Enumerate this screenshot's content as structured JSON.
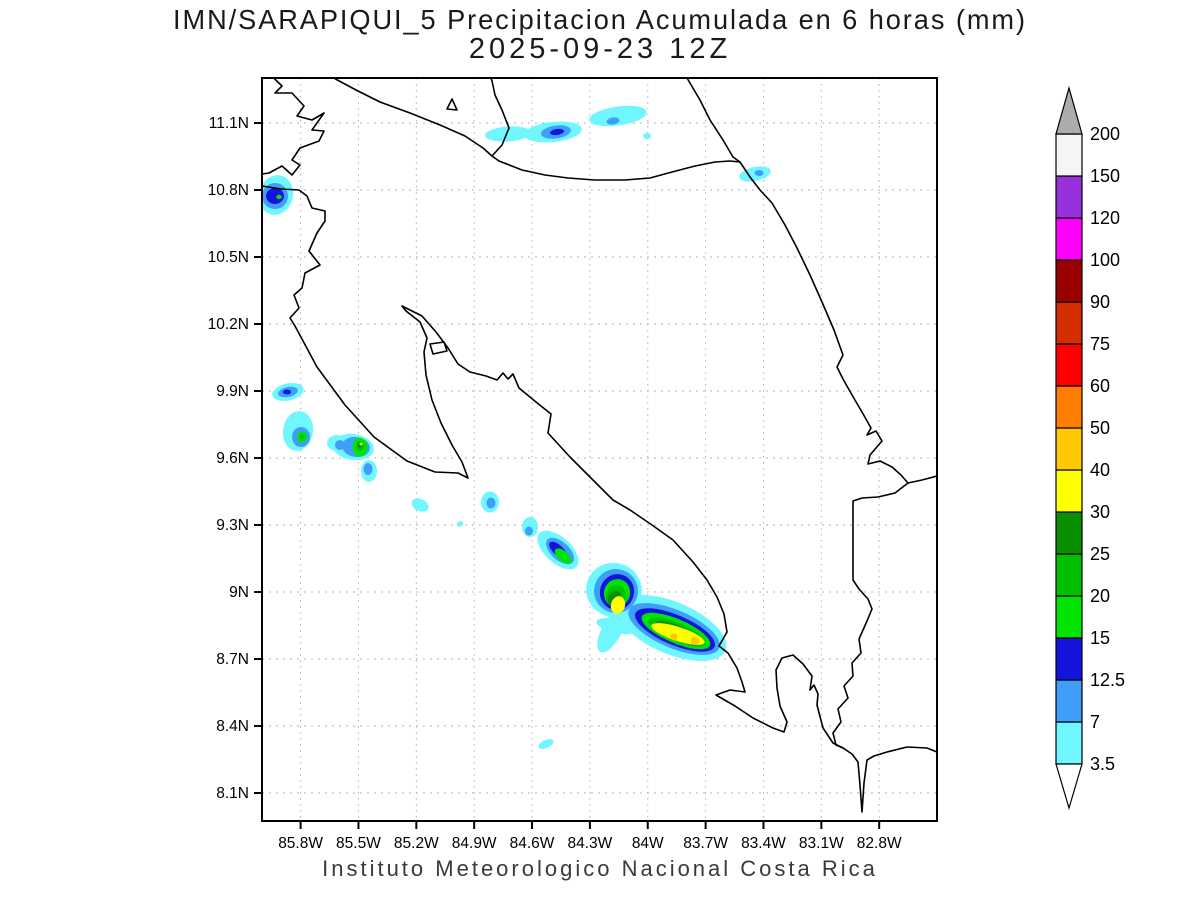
{
  "title": {
    "line1": "IMN/SARAPIQUI_5 Precipitacion Acumulada en 6 horas (mm)",
    "line2": "2025-09-23 12Z"
  },
  "footer": "Instituto Meteorologico Nacional Costa Rica",
  "map": {
    "lat_ticks": [
      "11.1N",
      "10.8N",
      "10.5N",
      "10.2N",
      "9.9N",
      "9.6N",
      "9.3N",
      "9N",
      "8.7N",
      "8.4N",
      "8.1N"
    ],
    "lon_ticks": [
      "85.8W",
      "85.5W",
      "85.2W",
      "84.9W",
      "84.6W",
      "84.3W",
      "84W",
      "83.7W",
      "83.4W",
      "83.1W",
      "82.8W"
    ],
    "grid_color": "#b0b0b0",
    "coast_color": "#000000"
  },
  "colorbar": {
    "levels": [
      "3.5",
      "7",
      "12.5",
      "15",
      "20",
      "25",
      "30",
      "40",
      "50",
      "60",
      "75",
      "90",
      "100",
      "120",
      "150",
      "200"
    ],
    "colors": [
      "#70F6FF",
      "#3F9FF8",
      "#1414DC",
      "#00E400",
      "#00C000",
      "#089000",
      "#FFFF00",
      "#FFC800",
      "#FF7D00",
      "#FF0000",
      "#D32D00",
      "#9A0000",
      "#FF00FF",
      "#9632DC",
      "#F5F5F5"
    ],
    "above_color": "#ACACAC",
    "below_color": "#FFFFFF"
  },
  "palette": {
    "3.5": "#70F6FF",
    "7": "#3F9FF8",
    "12.5": "#1414DC",
    "15": "#00E400",
    "20": "#00C000",
    "25": "#089000",
    "30": "#FFFF00",
    "40": "#FFC800"
  },
  "cells": [
    {
      "name": "guanacaste-north-offshore",
      "layers": [
        [
          "3.5",
          276,
          195,
          17,
          20,
          15
        ],
        [
          "7",
          275,
          196,
          13,
          13,
          0
        ],
        [
          "12.5",
          275,
          196,
          9,
          8,
          0
        ],
        [
          "15",
          279,
          197,
          2.8,
          2.2,
          0
        ]
      ]
    },
    {
      "name": "border-west-cell",
      "layers": [
        [
          "3.5",
          508,
          134,
          23,
          7.5,
          -4
        ],
        [
          "3.5",
          553,
          132,
          29,
          10,
          -6
        ],
        [
          "7",
          556,
          132,
          15,
          6.5,
          -8
        ],
        [
          "12.5",
          557,
          132,
          7,
          3,
          -8
        ]
      ]
    },
    {
      "name": "border-east-cell",
      "layers": [
        [
          "3.5",
          618,
          116,
          29,
          9.5,
          -8
        ],
        [
          "3.5",
          647,
          136,
          4,
          3,
          0
        ],
        [
          "7",
          613,
          121,
          6.5,
          3.5,
          -10
        ]
      ]
    },
    {
      "name": "caribbean-coast-speck",
      "layers": [
        [
          "3.5",
          755,
          174,
          16,
          7,
          -12
        ],
        [
          "7",
          759,
          173,
          4.5,
          3,
          0
        ]
      ]
    },
    {
      "name": "nicoya-nw-cell",
      "layers": [
        [
          "3.5",
          288,
          392,
          16,
          8.5,
          -12
        ],
        [
          "7",
          288,
          392,
          10,
          5,
          -12
        ],
        [
          "12.5",
          287,
          392,
          4,
          2.5,
          0
        ]
      ]
    },
    {
      "name": "nicoya-west-cell",
      "layers": [
        [
          "3.5",
          298,
          431,
          15,
          20,
          8
        ],
        [
          "7",
          301,
          437,
          9,
          10,
          0
        ],
        [
          "15",
          302,
          437,
          5,
          5.5,
          0
        ],
        [
          "20",
          302,
          437,
          2.5,
          2.5,
          0
        ]
      ]
    },
    {
      "name": "nicoya-south-cell",
      "layers": [
        [
          "3.5",
          337,
          443,
          10,
          8,
          0
        ],
        [
          "3.5",
          353,
          447,
          21,
          13,
          8
        ],
        [
          "7",
          340,
          445,
          5,
          5,
          0
        ],
        [
          "7",
          356,
          447,
          14,
          10,
          8
        ],
        [
          "15",
          360,
          447,
          7.5,
          9,
          0
        ],
        [
          "20",
          360,
          446,
          4,
          5,
          0
        ],
        [
          "25",
          360,
          445,
          2.2,
          2.5,
          0
        ],
        [
          "30",
          361,
          444,
          1.5,
          1.5,
          0
        ]
      ]
    },
    {
      "name": "nicoya-tip-cell",
      "layers": [
        [
          "3.5",
          369,
          471,
          8,
          11,
          0
        ],
        [
          "7",
          368,
          469,
          4.5,
          6,
          0
        ]
      ]
    },
    {
      "name": "gulf-mouth-speck",
      "layers": [
        [
          "3.5",
          420,
          505,
          9,
          6,
          25
        ]
      ]
    },
    {
      "name": "tiny-offshore-speck",
      "layers": [
        [
          "3.5",
          460,
          524,
          3.5,
          2.5,
          -20
        ]
      ]
    },
    {
      "name": "herradura-speck",
      "layers": [
        [
          "3.5",
          490,
          502,
          9,
          10.5,
          0
        ],
        [
          "7",
          491,
          503,
          4.5,
          5.5,
          0
        ]
      ]
    },
    {
      "name": "quepos-speck",
      "layers": [
        [
          "3.5",
          530,
          527,
          8,
          10,
          0
        ],
        [
          "7",
          529,
          531,
          4,
          4.5,
          0
        ]
      ]
    },
    {
      "name": "savegre-band",
      "layers": [
        [
          "3.5",
          558,
          550,
          25,
          13,
          42
        ],
        [
          "7",
          560,
          551,
          17,
          9,
          42
        ],
        [
          "12.5",
          558,
          550,
          11,
          5,
          42
        ],
        [
          "15",
          563,
          556,
          10,
          5,
          42
        ]
      ]
    },
    {
      "name": "south-pacific-system",
      "layers": [
        [
          "3.5",
          614,
          590,
          28,
          27,
          20
        ],
        [
          "3.5",
          672,
          628,
          58,
          26,
          23
        ],
        [
          "3.5",
          612,
          630,
          10,
          25,
          28
        ],
        [
          "3.5",
          617,
          626,
          21,
          7,
          12
        ],
        [
          "7",
          616,
          591,
          22,
          22,
          20
        ],
        [
          "7",
          674,
          629,
          49,
          19,
          23
        ],
        [
          "12.5",
          617,
          592,
          17,
          18,
          20
        ],
        [
          "12.5",
          675,
          630,
          43,
          15,
          23
        ],
        [
          "15",
          617,
          593,
          13,
          14,
          20
        ],
        [
          "15",
          676,
          631,
          37,
          12,
          23
        ],
        [
          "20",
          616,
          596,
          10,
          11,
          20
        ],
        [
          "20",
          677,
          632,
          31,
          9,
          23
        ],
        [
          "25",
          615,
          599,
          7,
          8,
          20
        ],
        [
          "25",
          678,
          633,
          25,
          7,
          23
        ],
        [
          "30",
          618,
          605,
          7,
          9,
          15
        ],
        [
          "30",
          678,
          634,
          28,
          7,
          18
        ],
        [
          "40",
          674,
          637,
          3.5,
          3.5,
          0
        ],
        [
          "40",
          695,
          641,
          4.5,
          4,
          0
        ]
      ]
    },
    {
      "name": "osa-south-speck",
      "layers": [
        [
          "3.5",
          546,
          744,
          8,
          4,
          -25
        ]
      ]
    }
  ],
  "chart_data": {
    "type": "heatmap",
    "variable": "Precipitacion Acumulada en 6 horas",
    "units": "mm",
    "valid_time": "2025-09-23 12Z",
    "model": "IMN/SARAPIQUI_5",
    "lon_range_W": [
      86.0,
      82.5
    ],
    "lat_range_N": [
      8.0,
      11.3
    ],
    "contour_levels_mm": [
      3.5,
      7,
      12.5,
      15,
      20,
      25,
      30,
      40,
      50,
      60,
      75,
      90,
      100,
      120,
      150,
      200
    ],
    "legend_position": "right",
    "grid": "dotted 0.3 degree",
    "cells_summary": [
      {
        "lon_W": 85.93,
        "lat_N": 10.78,
        "peak_mm_bin": "15-20"
      },
      {
        "lon_W": 84.49,
        "lat_N": 11.06,
        "peak_mm_bin": "12.5-15"
      },
      {
        "lon_W": 84.15,
        "lat_N": 11.13,
        "peak_mm_bin": "7-12.5"
      },
      {
        "lon_W": 83.44,
        "lat_N": 10.87,
        "peak_mm_bin": "7-12.5"
      },
      {
        "lon_W": 85.87,
        "lat_N": 9.89,
        "peak_mm_bin": "12.5-15"
      },
      {
        "lon_W": 85.8,
        "lat_N": 9.69,
        "peak_mm_bin": "20-25"
      },
      {
        "lon_W": 85.51,
        "lat_N": 9.65,
        "peak_mm_bin": "30-40"
      },
      {
        "lon_W": 85.45,
        "lat_N": 9.54,
        "peak_mm_bin": "7-12.5"
      },
      {
        "lon_W": 85.18,
        "lat_N": 9.39,
        "peak_mm_bin": "3.5-7"
      },
      {
        "lon_W": 84.82,
        "lat_N": 9.4,
        "peak_mm_bin": "7-12.5"
      },
      {
        "lon_W": 84.61,
        "lat_N": 9.29,
        "peak_mm_bin": "7-12.5"
      },
      {
        "lon_W": 84.47,
        "lat_N": 9.19,
        "peak_mm_bin": "15-20"
      },
      {
        "lon_W": 83.96,
        "lat_N": 8.9,
        "peak_mm_bin": "40-50"
      },
      {
        "lon_W": 84.53,
        "lat_N": 8.32,
        "peak_mm_bin": "3.5-7"
      }
    ]
  }
}
